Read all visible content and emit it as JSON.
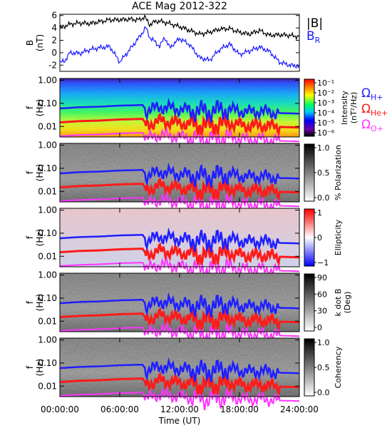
{
  "title": "ACE Mag 2012-322",
  "colors": {
    "b_total": "#000000",
    "b_r": "#1a1aff",
    "h_plus": "#1f1fff",
    "he_plus": "#ff1a1a",
    "o_plus": "#ff33ff"
  },
  "chart_data": [
    {
      "type": "line",
      "panel": "magnetic-field",
      "ylabel": "B",
      "yunit": "(nT)",
      "ylim": [
        -3,
        6.2
      ],
      "yticks": [
        "6",
        "4",
        "2",
        "0",
        "-2"
      ],
      "legend": [
        "|B|",
        "B"
      ],
      "legend_sub": [
        "",
        "R"
      ],
      "series": [
        {
          "name": "|B|",
          "x": [
            0,
            1,
            2,
            3,
            4,
            5,
            6,
            7,
            8,
            8.5,
            9,
            9.5,
            10,
            11,
            12,
            13,
            14,
            15,
            16,
            17,
            18,
            19,
            20,
            21,
            22,
            23,
            24
          ],
          "values": [
            4.0,
            4.6,
            4.8,
            4.7,
            5.0,
            5.3,
            5.3,
            5.4,
            5.3,
            5.8,
            4.5,
            5.0,
            5.1,
            4.7,
            4.2,
            3.6,
            3.0,
            3.3,
            3.8,
            3.9,
            3.3,
            3.0,
            3.6,
            2.8,
            2.9,
            2.8,
            2.6
          ]
        },
        {
          "name": "B_R",
          "x": [
            0,
            0.5,
            1,
            2,
            3,
            4,
            5,
            6,
            7,
            8,
            8.3,
            8.6,
            9,
            9.5,
            10,
            10.5,
            11,
            12,
            13,
            14,
            15,
            16,
            17,
            18,
            19,
            20,
            21,
            22,
            23,
            24
          ],
          "values": [
            -1.6,
            -1.3,
            0.0,
            -0.1,
            0.5,
            0.8,
            1.0,
            -1.5,
            0.5,
            2.6,
            3.3,
            4.1,
            2.5,
            1.8,
            1.0,
            2.5,
            0.8,
            2.3,
            1.3,
            -0.8,
            -1.2,
            0.5,
            1.4,
            -0.3,
            0.3,
            0.9,
            0.2,
            -1.5,
            -2.0,
            -2.2
          ]
        }
      ]
    },
    {
      "type": "heatmap",
      "panel": "intensity",
      "ylabel": "f",
      "yunit": "(Hz)",
      "scale": "log",
      "ylim": [
        0.003,
        1.2
      ],
      "yticks": [
        "1.00",
        "0.10",
        "0.01"
      ],
      "colorbar": {
        "label": "Intensity",
        "unit": "(nT²/Hz)",
        "colormap": "rainbow",
        "ticks": [
          "10⁻¹",
          "10⁻²",
          "10⁻³",
          "10⁻⁴",
          "10⁻⁵",
          "10⁻⁶"
        ]
      },
      "legend": [
        {
          "symbol": "Ω",
          "sub": "H+"
        },
        {
          "symbol": "Ω",
          "sub": "He+"
        },
        {
          "symbol": "Ω",
          "sub": "O+"
        }
      ]
    },
    {
      "type": "heatmap",
      "panel": "polarization",
      "ylabel": "f",
      "yunit": "(Hz)",
      "scale": "log",
      "yticks": [
        "1.00",
        "0.10",
        "0.01"
      ],
      "colorbar": {
        "label": "% Polarization",
        "unit": "",
        "colormap": "grayscale",
        "ticks": [
          "1.0",
          "0.5",
          "0.0"
        ]
      }
    },
    {
      "type": "heatmap",
      "panel": "ellipticity",
      "ylabel": "f",
      "yunit": "(Hz)",
      "scale": "log",
      "yticks": [
        "1.00",
        "0.10",
        "0.01"
      ],
      "colorbar": {
        "label": "Ellipticity",
        "unit": "",
        "colormap": "blue-white-red",
        "ticks": [
          "1",
          "0",
          "−1"
        ]
      }
    },
    {
      "type": "heatmap",
      "panel": "k-dot-b",
      "ylabel": "f",
      "yunit": "(Hz)",
      "scale": "log",
      "yticks": [
        "1.00",
        "0.10",
        "0.01"
      ],
      "colorbar": {
        "label": "k dot B",
        "unit": "(Deg)",
        "colormap": "grayscale",
        "ticks": [
          "90",
          "60",
          "30",
          "0"
        ]
      }
    },
    {
      "type": "heatmap",
      "panel": "coherency",
      "ylabel": "f",
      "yunit": "(Hz)",
      "scale": "log",
      "yticks": [
        "1.00",
        "0.10",
        "0.01"
      ],
      "colorbar": {
        "label": "Coherency",
        "unit": "",
        "colormap": "grayscale",
        "ticks": [
          "1.0",
          "0.5",
          "0.0"
        ]
      },
      "xlabel": "Time (UT)",
      "xticks": [
        "00:00:00",
        "06:00:00",
        "12:00:00",
        "18:00:00",
        "24:00:00"
      ]
    }
  ],
  "gyrofrequencies": {
    "x": [
      0,
      2,
      4,
      6,
      8.3,
      8.6,
      9.2,
      10,
      11,
      12,
      13,
      14,
      15,
      16,
      17,
      18,
      19,
      20,
      21,
      22,
      23,
      24
    ],
    "h_plus": [
      0.06,
      0.068,
      0.072,
      0.08,
      0.085,
      0.045,
      0.055,
      0.07,
      0.063,
      0.056,
      0.052,
      0.046,
      0.045,
      0.05,
      0.055,
      0.047,
      0.042,
      0.045,
      0.042,
      0.038,
      0.037,
      0.036
    ]
  }
}
